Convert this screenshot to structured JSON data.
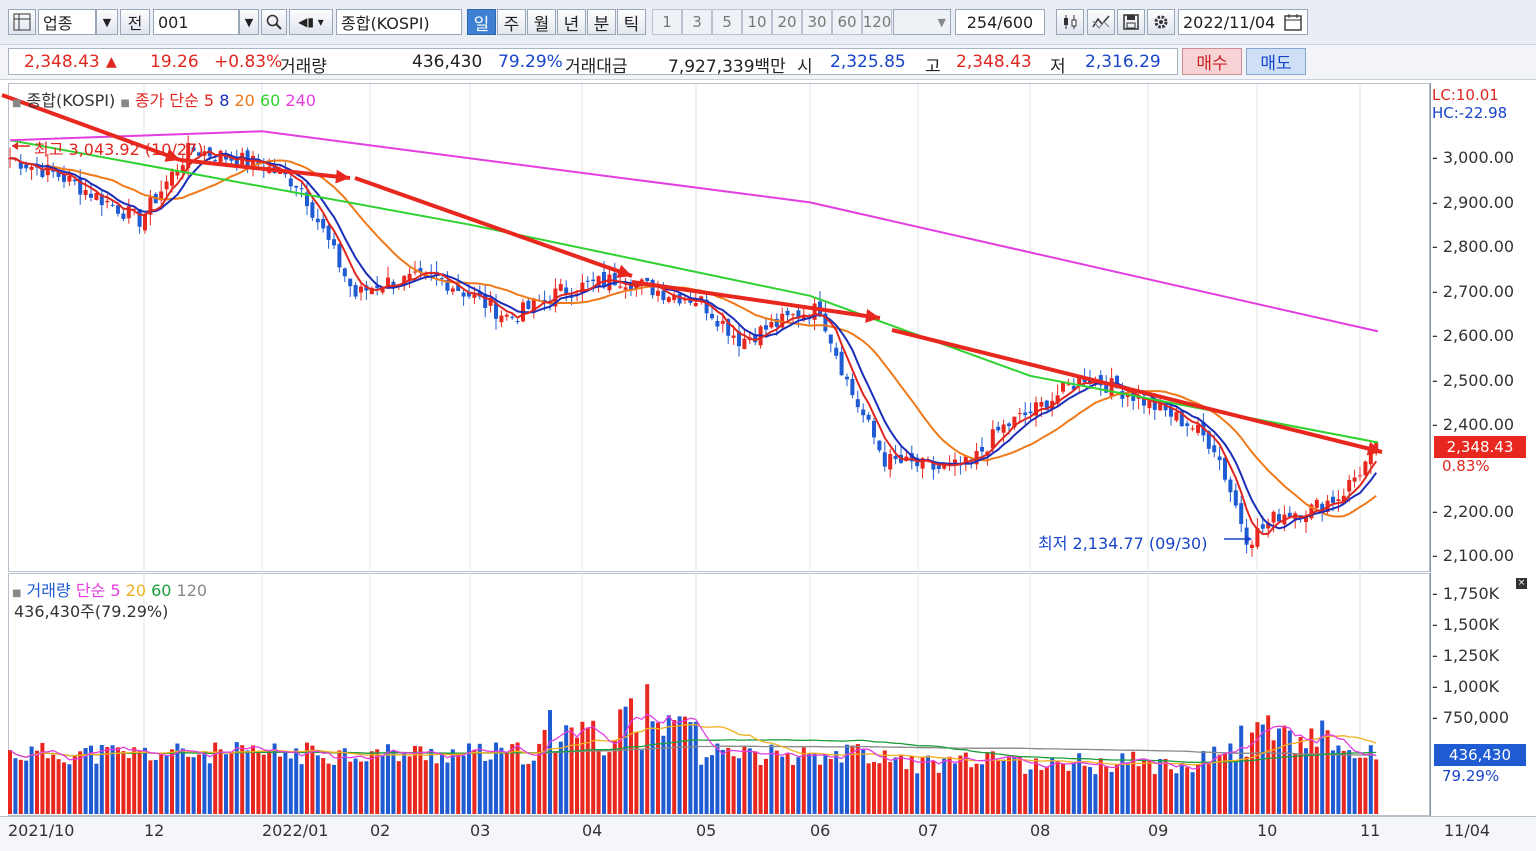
{
  "toolbar": {
    "market": "업종",
    "prev": "전",
    "code": "001",
    "name": "종합(KOSPI)",
    "periods": [
      "일",
      "주",
      "월",
      "년",
      "분",
      "틱"
    ],
    "active_period": "일",
    "intervals": [
      "1",
      "3",
      "5",
      "10",
      "20",
      "30",
      "60",
      "120"
    ],
    "count": "254",
    "total": "/600",
    "date": "2022/11/04"
  },
  "quote": {
    "price": "2,348.43",
    "change": "19.26",
    "change_pct": "+0.83%",
    "volume_label": "거래량",
    "volume": "436,430",
    "volume_ratio": "79.29%",
    "amount_label": "거래대금",
    "amount": "7,927,339백만",
    "open_label": "시",
    "open": "2,325.85",
    "high_label": "고",
    "high": "2,348.43",
    "low_label": "저",
    "low": "2,316.29",
    "buy": "매수",
    "sell": "매도"
  },
  "price_legend": {
    "name": "종합(KOSPI)",
    "ma_label": "종가 단순",
    "periods": [
      "5",
      "8",
      "20",
      "60",
      "240"
    ],
    "colors": [
      "#e0261f",
      "#1a2eb8",
      "#f07a1a",
      "#2fd22f",
      "#e43ee0"
    ]
  },
  "annotations": {
    "high": "최고 3,043.92 (10/27)",
    "low": "최저 2,134.77 (09/30)",
    "lc": "LC:10.01",
    "hc": "HC:-22.98",
    "last_price": "2,348.43",
    "last_pct": "0.83%"
  },
  "volume_legend": {
    "name": "거래량",
    "ma_label": "단순",
    "periods": [
      "5",
      "20",
      "60",
      "120"
    ],
    "colors": [
      "#e43ee0",
      "#f0b020",
      "#1d9d3a",
      "#888888"
    ],
    "current": "436,430주(79.29%)",
    "last_value": "436,430",
    "last_pct": "79.29%"
  },
  "price_axis": [
    "3,000.00",
    "2,900.00",
    "2,800.00",
    "2,700.00",
    "2,600.00",
    "2,500.00",
    "2,400.00",
    "2,200.00",
    "2,100.00"
  ],
  "volume_axis": [
    "1,750K",
    "1,500K",
    "1,250K",
    "1,000K",
    "750,000"
  ],
  "x_axis": [
    "2021/10",
    "12",
    "2022/01",
    "02",
    "03",
    "04",
    "05",
    "06",
    "07",
    "08",
    "09",
    "10",
    "11",
    "11/04"
  ],
  "colors": {
    "up": "#e8271f",
    "down": "#1f5bd3",
    "trend": "#e8271f"
  },
  "chart_data": {
    "type": "candlestick",
    "title": "종합(KOSPI)",
    "period": "daily",
    "ylim": [
      2080,
      3080
    ],
    "points": [
      {
        "date": "2021/10",
        "close": 3000
      },
      {
        "date": "2021/10/27",
        "close": 3043.92
      },
      {
        "date": "2021/12",
        "close": 2960
      },
      {
        "date": "2022/01",
        "close": 2970
      },
      {
        "date": "2022/02",
        "close": 2700
      },
      {
        "date": "2022/03",
        "close": 2680
      },
      {
        "date": "2022/04",
        "close": 2730
      },
      {
        "date": "2022/05",
        "close": 2650
      },
      {
        "date": "2022/06",
        "close": 2640
      },
      {
        "date": "2022/07",
        "close": 2320
      },
      {
        "date": "2022/08",
        "close": 2480
      },
      {
        "date": "2022/09",
        "close": 2390
      },
      {
        "date": "2022/09/30",
        "close": 2134.77
      },
      {
        "date": "2022/10",
        "close": 2220
      },
      {
        "date": "2022/11/04",
        "close": 2348.43
      }
    ],
    "moving_averages": {
      "ma240": [
        {
          "date": "2021/10",
          "value": 3040
        },
        {
          "date": "2022/01",
          "value": 3060
        },
        {
          "date": "2022/06",
          "value": 2900
        },
        {
          "date": "2022/11/04",
          "value": 2610
        }
      ],
      "ma60": [
        {
          "date": "2021/10",
          "value": 3040
        },
        {
          "date": "2022/03",
          "value": 2850
        },
        {
          "date": "2022/06",
          "value": 2690
        },
        {
          "date": "2022/08",
          "value": 2510
        },
        {
          "date": "2022/11/04",
          "value": 2360
        }
      ]
    },
    "volume_series": {
      "name": "거래량",
      "ylim": [
        0,
        1900000
      ],
      "last": 436430
    }
  }
}
